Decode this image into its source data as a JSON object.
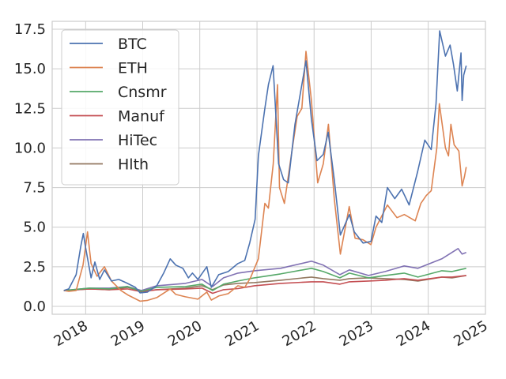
{
  "chart_data": {
    "type": "line",
    "title": "",
    "xlabel": "",
    "ylabel": "",
    "xlim": [
      "2017-06-01",
      "2025-01-01"
    ],
    "ylim": [
      -0.5,
      18.0
    ],
    "x_ticks": [
      "2018",
      "2019",
      "2020",
      "2021",
      "2022",
      "2023",
      "2024",
      "2025"
    ],
    "y_ticks": [
      "0.0",
      "2.5",
      "5.0",
      "7.5",
      "10.0",
      "12.5",
      "15.0",
      "17.5"
    ],
    "grid": true,
    "legend_position": "top-left",
    "series": [
      {
        "name": "BTC",
        "color": "#4c72b0",
        "points": [
          [
            "2017-08-15",
            1.0
          ],
          [
            "2017-09-15",
            1.1
          ],
          [
            "2017-11-01",
            2.0
          ],
          [
            "2017-12-01",
            3.8
          ],
          [
            "2017-12-17",
            4.6
          ],
          [
            "2018-01-01",
            3.7
          ],
          [
            "2018-02-05",
            1.8
          ],
          [
            "2018-03-01",
            2.8
          ],
          [
            "2018-04-01",
            1.7
          ],
          [
            "2018-05-01",
            2.3
          ],
          [
            "2018-06-15",
            1.6
          ],
          [
            "2018-08-01",
            1.7
          ],
          [
            "2018-09-15",
            1.5
          ],
          [
            "2018-11-15",
            1.2
          ],
          [
            "2018-12-15",
            0.85
          ],
          [
            "2019-02-01",
            0.9
          ],
          [
            "2019-04-01",
            1.3
          ],
          [
            "2019-05-15",
            2.1
          ],
          [
            "2019-06-26",
            3.0
          ],
          [
            "2019-08-01",
            2.6
          ],
          [
            "2019-09-15",
            2.4
          ],
          [
            "2019-10-20",
            1.8
          ],
          [
            "2019-11-15",
            2.1
          ],
          [
            "2019-12-20",
            1.7
          ],
          [
            "2020-02-15",
            2.5
          ],
          [
            "2020-03-15",
            1.2
          ],
          [
            "2020-05-01",
            2.0
          ],
          [
            "2020-07-01",
            2.2
          ],
          [
            "2020-09-01",
            2.7
          ],
          [
            "2020-10-15",
            2.9
          ],
          [
            "2020-11-15",
            4.0
          ],
          [
            "2020-12-20",
            5.5
          ],
          [
            "2021-01-10",
            9.5
          ],
          [
            "2021-02-20",
            12.5
          ],
          [
            "2021-03-15",
            14.0
          ],
          [
            "2021-04-14",
            15.2
          ],
          [
            "2021-05-19",
            9.0
          ],
          [
            "2021-06-20",
            8.0
          ],
          [
            "2021-07-20",
            7.8
          ],
          [
            "2021-09-01",
            11.5
          ],
          [
            "2021-10-15",
            14.0
          ],
          [
            "2021-11-10",
            15.5
          ],
          [
            "2021-12-15",
            11.8
          ],
          [
            "2022-01-20",
            9.2
          ],
          [
            "2022-03-01",
            9.6
          ],
          [
            "2022-04-01",
            11.0
          ],
          [
            "2022-05-10",
            8.0
          ],
          [
            "2022-06-18",
            4.5
          ],
          [
            "2022-08-15",
            5.8
          ],
          [
            "2022-09-15",
            4.7
          ],
          [
            "2022-11-10",
            4.0
          ],
          [
            "2022-12-31",
            4.1
          ],
          [
            "2023-02-01",
            5.7
          ],
          [
            "2023-03-10",
            5.3
          ],
          [
            "2023-04-15",
            7.5
          ],
          [
            "2023-06-01",
            6.8
          ],
          [
            "2023-07-15",
            7.4
          ],
          [
            "2023-09-01",
            6.4
          ],
          [
            "2023-10-25",
            8.5
          ],
          [
            "2023-12-10",
            10.5
          ],
          [
            "2024-01-20",
            9.9
          ],
          [
            "2024-02-20",
            12.8
          ],
          [
            "2024-03-14",
            17.4
          ],
          [
            "2024-04-20",
            15.8
          ],
          [
            "2024-05-20",
            16.5
          ],
          [
            "2024-06-10",
            15.3
          ],
          [
            "2024-07-05",
            13.6
          ],
          [
            "2024-07-29",
            16.0
          ],
          [
            "2024-08-05",
            13.0
          ],
          [
            "2024-08-15",
            14.6
          ],
          [
            "2024-08-31",
            15.2
          ]
        ]
      },
      {
        "name": "ETH",
        "color": "#dd8452",
        "points": [
          [
            "2017-08-15",
            1.0
          ],
          [
            "2017-09-15",
            0.95
          ],
          [
            "2017-11-01",
            1.0
          ],
          [
            "2017-12-15",
            2.6
          ],
          [
            "2018-01-13",
            4.7
          ],
          [
            "2018-02-05",
            2.7
          ],
          [
            "2018-03-15",
            1.9
          ],
          [
            "2018-05-01",
            2.5
          ],
          [
            "2018-06-15",
            1.6
          ],
          [
            "2018-08-15",
            1.0
          ],
          [
            "2018-10-01",
            0.7
          ],
          [
            "2018-12-15",
            0.33
          ],
          [
            "2019-02-01",
            0.38
          ],
          [
            "2019-04-01",
            0.55
          ],
          [
            "2019-06-26",
            1.1
          ],
          [
            "2019-08-01",
            0.75
          ],
          [
            "2019-10-01",
            0.6
          ],
          [
            "2019-12-20",
            0.45
          ],
          [
            "2020-02-15",
            0.9
          ],
          [
            "2020-03-15",
            0.4
          ],
          [
            "2020-05-01",
            0.65
          ],
          [
            "2020-07-01",
            0.8
          ],
          [
            "2020-09-01",
            1.3
          ],
          [
            "2020-10-15",
            1.2
          ],
          [
            "2020-11-20",
            1.8
          ],
          [
            "2021-01-10",
            3.0
          ],
          [
            "2021-02-20",
            6.5
          ],
          [
            "2021-03-15",
            6.2
          ],
          [
            "2021-04-15",
            9.0
          ],
          [
            "2021-05-12",
            14.0
          ],
          [
            "2021-05-25",
            7.5
          ],
          [
            "2021-06-25",
            6.5
          ],
          [
            "2021-08-15",
            10.0
          ],
          [
            "2021-09-15",
            12.0
          ],
          [
            "2021-10-15",
            12.5
          ],
          [
            "2021-11-10",
            16.1
          ],
          [
            "2021-12-15",
            13.0
          ],
          [
            "2022-01-24",
            7.8
          ],
          [
            "2022-03-01",
            9.0
          ],
          [
            "2022-04-03",
            11.5
          ],
          [
            "2022-05-10",
            6.8
          ],
          [
            "2022-06-18",
            3.3
          ],
          [
            "2022-08-14",
            6.3
          ],
          [
            "2022-09-20",
            4.3
          ],
          [
            "2022-11-10",
            4.2
          ],
          [
            "2022-12-31",
            3.9
          ],
          [
            "2023-02-01",
            5.0
          ],
          [
            "2023-04-15",
            6.4
          ],
          [
            "2023-06-15",
            5.6
          ],
          [
            "2023-08-01",
            5.8
          ],
          [
            "2023-10-10",
            5.4
          ],
          [
            "2023-11-15",
            6.5
          ],
          [
            "2023-12-20",
            7.0
          ],
          [
            "2024-01-20",
            7.3
          ],
          [
            "2024-02-25",
            10.0
          ],
          [
            "2024-03-12",
            12.8
          ],
          [
            "2024-04-20",
            10.0
          ],
          [
            "2024-05-10",
            9.5
          ],
          [
            "2024-05-25",
            11.5
          ],
          [
            "2024-06-15",
            10.2
          ],
          [
            "2024-07-15",
            9.8
          ],
          [
            "2024-08-05",
            7.6
          ],
          [
            "2024-08-20",
            8.2
          ],
          [
            "2024-08-31",
            8.8
          ]
        ]
      },
      {
        "name": "Cnsmr",
        "color": "#55a868",
        "points": [
          [
            "2017-08-15",
            1.0
          ],
          [
            "2018-01-25",
            1.15
          ],
          [
            "2018-06-01",
            1.1
          ],
          [
            "2018-09-25",
            1.25
          ],
          [
            "2018-12-24",
            0.95
          ],
          [
            "2019-04-01",
            1.2
          ],
          [
            "2019-10-01",
            1.25
          ],
          [
            "2020-01-15",
            1.4
          ],
          [
            "2020-03-23",
            1.0
          ],
          [
            "2020-06-01",
            1.4
          ],
          [
            "2020-09-01",
            1.6
          ],
          [
            "2020-12-15",
            1.8
          ],
          [
            "2021-06-01",
            2.05
          ],
          [
            "2021-12-15",
            2.4
          ],
          [
            "2022-03-01",
            2.2
          ],
          [
            "2022-06-15",
            1.8
          ],
          [
            "2022-08-15",
            2.1
          ],
          [
            "2022-12-15",
            1.8
          ],
          [
            "2023-04-01",
            1.95
          ],
          [
            "2023-07-31",
            2.1
          ],
          [
            "2023-10-27",
            1.85
          ],
          [
            "2024-03-28",
            2.25
          ],
          [
            "2024-06-01",
            2.2
          ],
          [
            "2024-08-31",
            2.4
          ]
        ]
      },
      {
        "name": "Manuf",
        "color": "#c44e52",
        "points": [
          [
            "2017-08-15",
            1.0
          ],
          [
            "2018-01-25",
            1.1
          ],
          [
            "2018-06-01",
            1.05
          ],
          [
            "2018-09-25",
            1.1
          ],
          [
            "2018-12-24",
            0.92
          ],
          [
            "2019-04-01",
            1.05
          ],
          [
            "2019-10-01",
            1.1
          ],
          [
            "2020-01-15",
            1.15
          ],
          [
            "2020-03-23",
            0.82
          ],
          [
            "2020-06-01",
            1.05
          ],
          [
            "2020-09-01",
            1.12
          ],
          [
            "2020-12-15",
            1.3
          ],
          [
            "2021-06-01",
            1.45
          ],
          [
            "2021-12-15",
            1.55
          ],
          [
            "2022-03-01",
            1.55
          ],
          [
            "2022-06-15",
            1.4
          ],
          [
            "2022-08-15",
            1.55
          ],
          [
            "2022-12-15",
            1.6
          ],
          [
            "2023-04-01",
            1.65
          ],
          [
            "2023-07-31",
            1.75
          ],
          [
            "2023-10-27",
            1.65
          ],
          [
            "2024-03-28",
            1.85
          ],
          [
            "2024-06-01",
            1.85
          ],
          [
            "2024-08-31",
            1.95
          ]
        ]
      },
      {
        "name": "HiTec",
        "color": "#8172b3",
        "points": [
          [
            "2017-08-15",
            1.0
          ],
          [
            "2018-01-25",
            1.15
          ],
          [
            "2018-06-01",
            1.15
          ],
          [
            "2018-09-25",
            1.25
          ],
          [
            "2018-12-24",
            1.0
          ],
          [
            "2019-04-01",
            1.3
          ],
          [
            "2019-10-01",
            1.45
          ],
          [
            "2020-01-15",
            1.7
          ],
          [
            "2020-03-23",
            1.25
          ],
          [
            "2020-06-01",
            1.8
          ],
          [
            "2020-09-01",
            2.1
          ],
          [
            "2020-12-15",
            2.25
          ],
          [
            "2021-06-01",
            2.4
          ],
          [
            "2021-12-15",
            2.85
          ],
          [
            "2022-03-01",
            2.6
          ],
          [
            "2022-06-15",
            2.0
          ],
          [
            "2022-08-15",
            2.3
          ],
          [
            "2022-12-15",
            1.95
          ],
          [
            "2023-04-01",
            2.2
          ],
          [
            "2023-07-31",
            2.55
          ],
          [
            "2023-10-27",
            2.4
          ],
          [
            "2024-03-28",
            3.0
          ],
          [
            "2024-07-10",
            3.65
          ],
          [
            "2024-08-05",
            3.3
          ],
          [
            "2024-08-31",
            3.4
          ]
        ]
      },
      {
        "name": "Hlth",
        "color": "#937860",
        "points": [
          [
            "2017-08-15",
            1.0
          ],
          [
            "2018-01-25",
            1.1
          ],
          [
            "2018-06-01",
            1.05
          ],
          [
            "2018-09-25",
            1.2
          ],
          [
            "2018-12-24",
            0.95
          ],
          [
            "2019-04-01",
            1.05
          ],
          [
            "2019-10-01",
            1.15
          ],
          [
            "2020-01-15",
            1.3
          ],
          [
            "2020-03-23",
            1.05
          ],
          [
            "2020-06-01",
            1.35
          ],
          [
            "2020-09-01",
            1.45
          ],
          [
            "2020-12-15",
            1.5
          ],
          [
            "2021-06-01",
            1.65
          ],
          [
            "2021-12-15",
            1.85
          ],
          [
            "2022-03-01",
            1.75
          ],
          [
            "2022-06-15",
            1.65
          ],
          [
            "2022-08-15",
            1.75
          ],
          [
            "2022-12-15",
            1.8
          ],
          [
            "2023-04-01",
            1.75
          ],
          [
            "2023-07-31",
            1.7
          ],
          [
            "2023-10-27",
            1.6
          ],
          [
            "2024-03-28",
            1.85
          ],
          [
            "2024-06-01",
            1.8
          ],
          [
            "2024-08-31",
            1.95
          ]
        ]
      }
    ]
  }
}
